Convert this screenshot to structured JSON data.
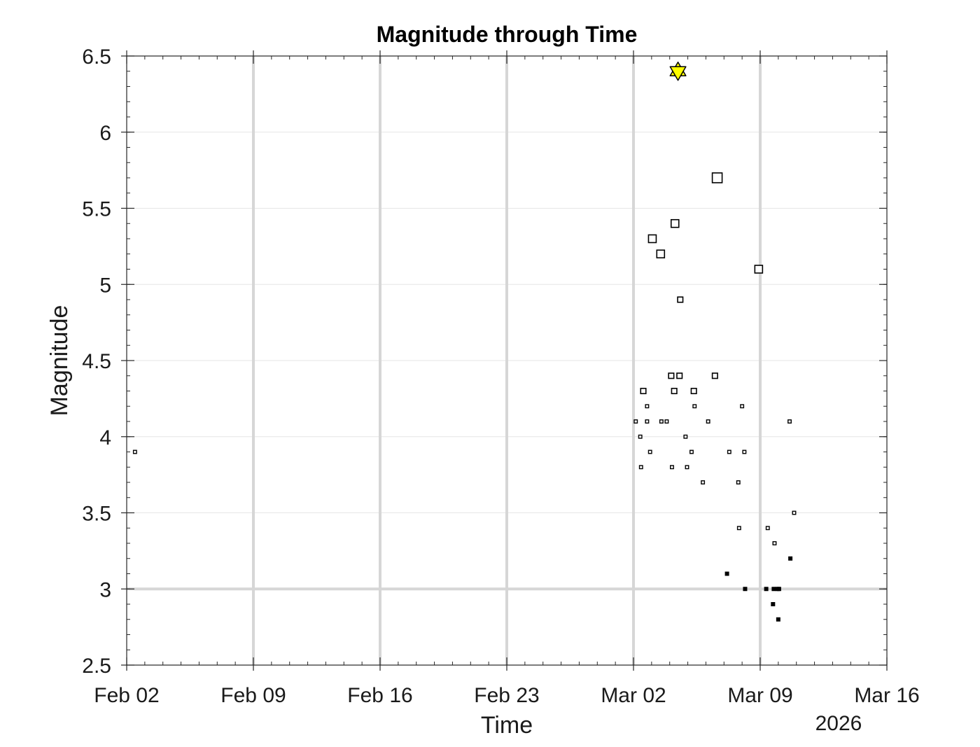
{
  "chart_data": {
    "type": "scatter",
    "title": "Magnitude through Time",
    "xlabel": "Time",
    "ylabel": "Magnitude",
    "year_label": "2026",
    "xlim": [
      "2026-02-02",
      "2026-03-16"
    ],
    "ylim": [
      2.5,
      6.5
    ],
    "x_ticks": [
      "2026-02-02",
      "2026-02-09",
      "2026-02-16",
      "2026-02-23",
      "2026-03-02",
      "2026-03-09",
      "2026-03-16"
    ],
    "x_tick_labels": [
      "Feb 02",
      "Feb 09",
      "Feb 16",
      "Feb 23",
      "Mar 02",
      "Mar 09",
      "Mar 16"
    ],
    "y_ticks": [
      2.5,
      3,
      3.5,
      4,
      4.5,
      5,
      5.5,
      6,
      6.5
    ],
    "y_tick_labels": [
      "2.5",
      "3",
      "3.5",
      "4",
      "4.5",
      "5",
      "5.5",
      "6",
      "6.5"
    ],
    "highlight_lines": {
      "x": [
        "2026-02-09",
        "2026-02-16",
        "2026-02-23",
        "2026-03-02",
        "2026-03-09"
      ],
      "y": [
        3
      ]
    },
    "mainshock_color": "#ffff00",
    "marker_color": "#000000",
    "points": [
      {
        "t": "2026-02-02T11:00",
        "mag": 3.9
      },
      {
        "t": "2026-03-02T03:00",
        "mag": 4.1
      },
      {
        "t": "2026-03-02T09:00",
        "mag": 4.0
      },
      {
        "t": "2026-03-02T10:00",
        "mag": 3.8
      },
      {
        "t": "2026-03-02T13:00",
        "mag": 4.3
      },
      {
        "t": "2026-03-02T18:00",
        "mag": 4.2
      },
      {
        "t": "2026-03-02T18:00",
        "mag": 4.1
      },
      {
        "t": "2026-03-02T22:00",
        "mag": 3.9
      },
      {
        "t": "2026-03-03T01:00",
        "mag": 5.3
      },
      {
        "t": "2026-03-03T12:00",
        "mag": 5.2
      },
      {
        "t": "2026-03-03T13:00",
        "mag": 4.1
      },
      {
        "t": "2026-03-03T20:00",
        "mag": 4.1
      },
      {
        "t": "2026-03-04T02:00",
        "mag": 4.4
      },
      {
        "t": "2026-03-04T03:00",
        "mag": 3.8
      },
      {
        "t": "2026-03-04T06:00",
        "mag": 4.3
      },
      {
        "t": "2026-03-04T07:00",
        "mag": 5.4
      },
      {
        "t": "2026-03-04T11:00",
        "mag": 6.4,
        "mainshock": true
      },
      {
        "t": "2026-03-04T13:00",
        "mag": 4.4
      },
      {
        "t": "2026-03-04T14:00",
        "mag": 4.9
      },
      {
        "t": "2026-03-04T21:00",
        "mag": 4.0
      },
      {
        "t": "2026-03-04T23:00",
        "mag": 3.8
      },
      {
        "t": "2026-03-05T05:00",
        "mag": 3.9
      },
      {
        "t": "2026-03-05T08:00",
        "mag": 4.3
      },
      {
        "t": "2026-03-05T09:00",
        "mag": 4.2
      },
      {
        "t": "2026-03-05T20:00",
        "mag": 3.7
      },
      {
        "t": "2026-03-06T03:00",
        "mag": 4.1
      },
      {
        "t": "2026-03-06T12:00",
        "mag": 4.4
      },
      {
        "t": "2026-03-06T15:00",
        "mag": 5.7
      },
      {
        "t": "2026-03-07T04:00",
        "mag": 3.1
      },
      {
        "t": "2026-03-07T07:00",
        "mag": 3.9
      },
      {
        "t": "2026-03-07T19:00",
        "mag": 3.7
      },
      {
        "t": "2026-03-07T20:00",
        "mag": 3.4
      },
      {
        "t": "2026-03-08T00:00",
        "mag": 4.2
      },
      {
        "t": "2026-03-08T03:00",
        "mag": 3.9
      },
      {
        "t": "2026-03-08T04:00",
        "mag": 3.0
      },
      {
        "t": "2026-03-08T22:00",
        "mag": 5.1
      },
      {
        "t": "2026-03-09T08:00",
        "mag": 3.0
      },
      {
        "t": "2026-03-09T10:00",
        "mag": 3.4
      },
      {
        "t": "2026-03-09T17:00",
        "mag": 2.9
      },
      {
        "t": "2026-03-09T18:00",
        "mag": 3.0
      },
      {
        "t": "2026-03-09T19:00",
        "mag": 3.3
      },
      {
        "t": "2026-03-09T23:00",
        "mag": 3.0
      },
      {
        "t": "2026-03-10T00:00",
        "mag": 2.8
      },
      {
        "t": "2026-03-10T01:00",
        "mag": 3.0
      },
      {
        "t": "2026-03-10T15:00",
        "mag": 4.1
      },
      {
        "t": "2026-03-10T16:00",
        "mag": 3.2
      },
      {
        "t": "2026-03-10T21:00",
        "mag": 3.5
      }
    ]
  }
}
